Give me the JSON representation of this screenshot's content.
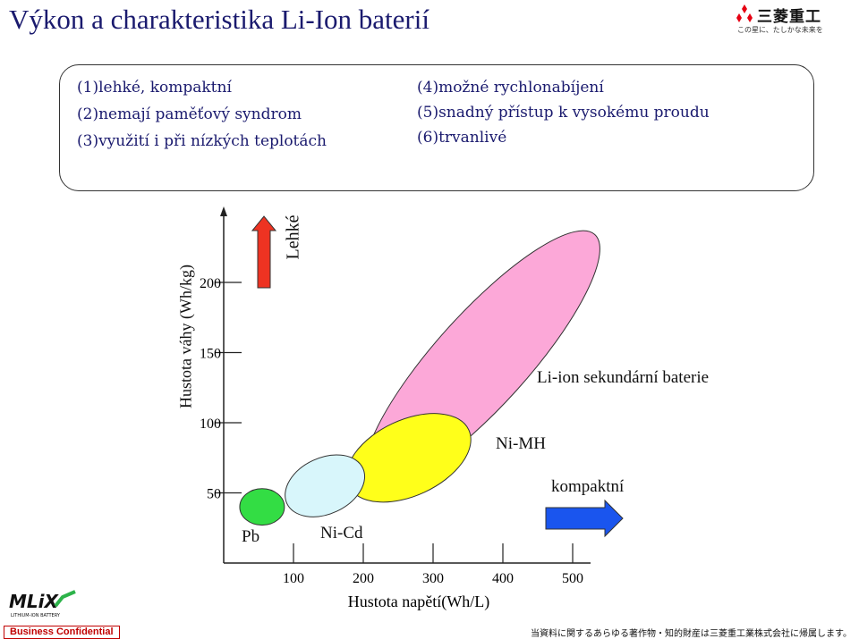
{
  "title": "Výkon a charakteristika Li-Ion baterií",
  "logo": {
    "brand": "三菱重工",
    "tagline": "この星に、たしかな未来を"
  },
  "features": {
    "left": [
      "(1)lehké, kompaktní",
      "(2)nemají paměťový syndrom",
      "(3)využití i při nízkých teplotách"
    ],
    "right": [
      "(4)možné rychlonabíjení",
      "(5)snadný přístup k vysokému proudu",
      "(6)trvanlivé"
    ]
  },
  "chart_data": {
    "type": "scatter",
    "xlabel": "Hustota napětí(Wh/L)",
    "ylabel": "Hustota váhy (Wh/kg)",
    "x_ticks": [
      "100",
      "200",
      "300",
      "400",
      "500"
    ],
    "y_ticks": [
      "50",
      "100",
      "150",
      "200"
    ],
    "xlim": [
      0,
      520
    ],
    "ylim": [
      0,
      250
    ],
    "series": [
      {
        "name": "Pb",
        "color": "#33dd44",
        "center": [
          55,
          40
        ],
        "rx": 32,
        "ry": 13
      },
      {
        "name": "Ni-Cd",
        "color": "#d8f6fb",
        "center": [
          145,
          55
        ],
        "rx": 60,
        "ry": 20
      },
      {
        "name": "Ni-MH",
        "color": "#ffff1a",
        "center": [
          265,
          75
        ],
        "rx": 95,
        "ry": 27
      },
      {
        "name": "Li-ion sekundární baterie",
        "color": "#fca8d8",
        "center": [
          370,
          145
        ],
        "rx": 230,
        "ry": 55
      }
    ],
    "annotations": {
      "up": "Lehké",
      "right": "kompaktní"
    },
    "arrows": {
      "up_color": "#ee3322",
      "right_color": "#1a55ee"
    }
  },
  "footer": {
    "left": "Business Confidential",
    "right": "当資料に関するあらゆる著作物・知的財産は三菱重工業株式会社に帰属します。",
    "mlix": "MLiX",
    "mlix_sub": "LITHIUM-ION BATTERY"
  }
}
